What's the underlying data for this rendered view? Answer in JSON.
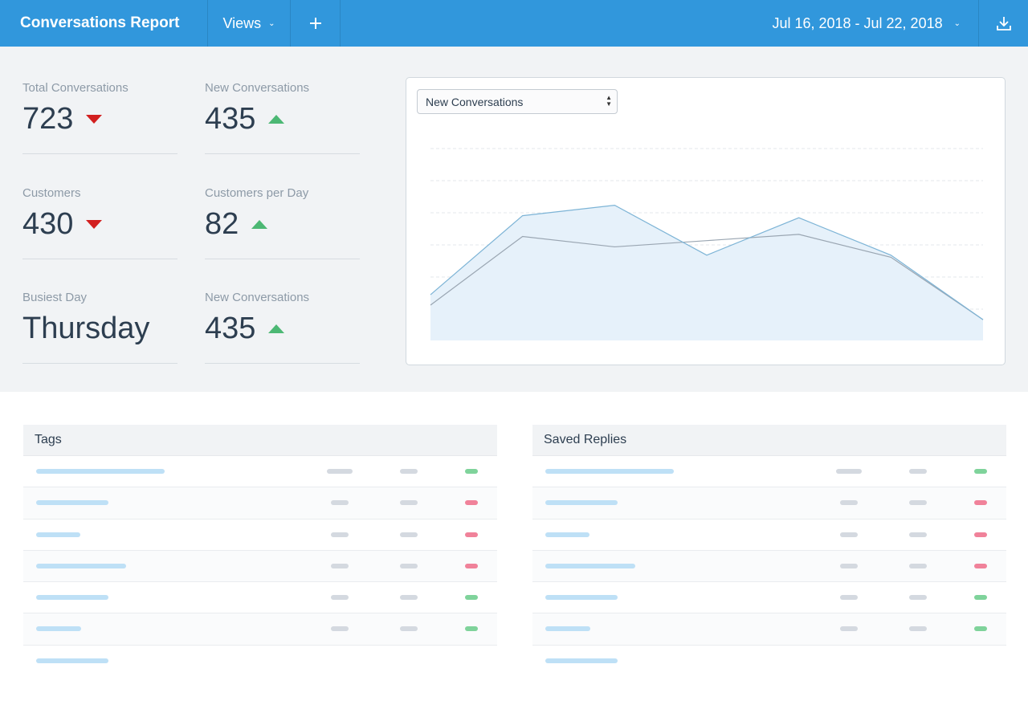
{
  "header": {
    "title": "Conversations Report",
    "views_label": "Views",
    "add_icon": "plus-icon",
    "date_range": "Jul 16, 2018 - Jul 22, 2018",
    "download_icon": "download-icon"
  },
  "stats": [
    {
      "label": "Total Conversations",
      "value": "723",
      "trend": "down"
    },
    {
      "label": "New Conversations",
      "value": "435",
      "trend": "up"
    },
    {
      "label": "Customers",
      "value": "430",
      "trend": "down"
    },
    {
      "label": "Customers per Day",
      "value": "82",
      "trend": "up"
    },
    {
      "label": "Busiest Day",
      "value": "Thursday",
      "trend": "none"
    },
    {
      "label": "New Conversations",
      "value": "435",
      "trend": "up"
    }
  ],
  "chart": {
    "selected_metric": "New Conversations",
    "colors": {
      "primary_line": "#7db4d6",
      "secondary_line": "#9aa6b2",
      "fill": "#e6f1fa",
      "grid": "#e3e7eb"
    },
    "chart_data": {
      "type": "area",
      "ylim": [
        0,
        100
      ],
      "series": [
        {
          "values": [
            22,
            60,
            65,
            41,
            59,
            41,
            10
          ]
        },
        {
          "values": [
            17,
            50,
            45,
            48,
            51,
            40,
            10
          ]
        }
      ]
    }
  },
  "colors": {
    "accent": "#3197dc",
    "trend_up": "#4cb874",
    "trend_down": "#d21f1f"
  },
  "tables": [
    {
      "title": "Tags",
      "rows": [
        {
          "name_len": 160,
          "c1_len": 32,
          "status": "pos"
        },
        {
          "name_len": 90,
          "c1_len": 22,
          "status": "neg"
        },
        {
          "name_len": 55,
          "c1_len": 22,
          "status": "neg"
        },
        {
          "name_len": 112,
          "c1_len": 22,
          "status": "neg"
        },
        {
          "name_len": 90,
          "c1_len": 22,
          "status": "pos"
        },
        {
          "name_len": 56,
          "c1_len": 22,
          "status": "pos"
        },
        {
          "name_len": 90,
          "c1_len": 0,
          "status": "none"
        }
      ]
    },
    {
      "title": "Saved Replies",
      "rows": [
        {
          "name_len": 160,
          "c1_len": 32,
          "status": "pos"
        },
        {
          "name_len": 90,
          "c1_len": 22,
          "status": "neg"
        },
        {
          "name_len": 55,
          "c1_len": 22,
          "status": "neg"
        },
        {
          "name_len": 112,
          "c1_len": 22,
          "status": "neg"
        },
        {
          "name_len": 90,
          "c1_len": 22,
          "status": "pos"
        },
        {
          "name_len": 56,
          "c1_len": 22,
          "status": "pos"
        },
        {
          "name_len": 90,
          "c1_len": 0,
          "status": "none"
        }
      ]
    }
  ]
}
